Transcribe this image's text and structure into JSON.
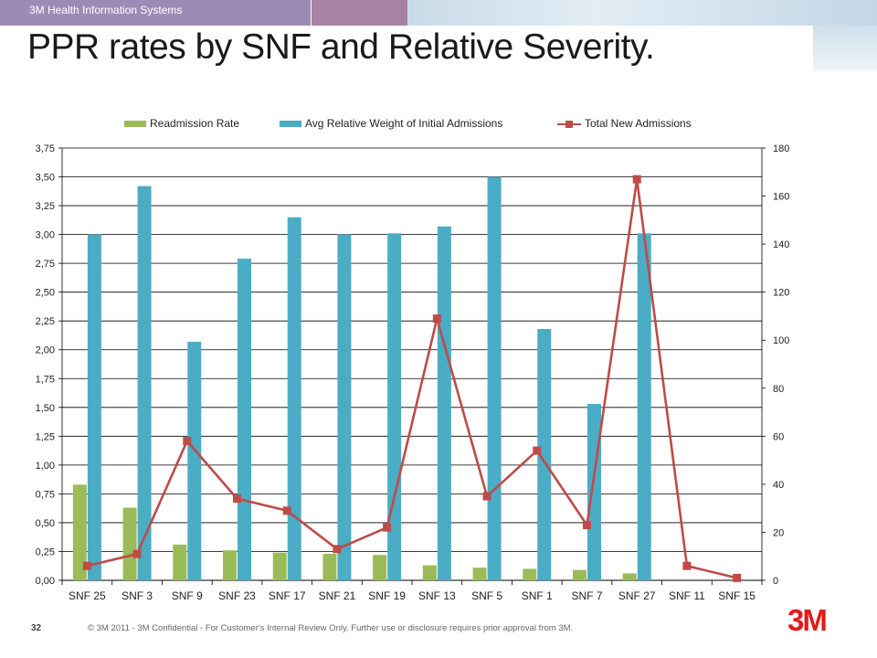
{
  "header": {
    "brand": "3M Health Information Systems",
    "title": "PPR rates by SNF and Relative Severity."
  },
  "colors": {
    "readmission": "#9bbb59",
    "weight": "#4bacc6",
    "admissions": "#be4b48",
    "grid": "#000000"
  },
  "chart_data": {
    "type": "bar",
    "title": "",
    "categories": [
      "SNF 25",
      "SNF 3",
      "SNF 9",
      "SNF 23",
      "SNF 17",
      "SNF 21",
      "SNF 19",
      "SNF 13",
      "SNF 5",
      "SNF 1",
      "SNF 7",
      "SNF 27",
      "SNF 11",
      "SNF 15"
    ],
    "series": [
      {
        "name": "Readmission Rate",
        "type": "bar",
        "axis": "left",
        "values": [
          0.83,
          0.63,
          0.31,
          0.26,
          0.24,
          0.23,
          0.22,
          0.13,
          0.11,
          0.1,
          0.09,
          0.06,
          0,
          0
        ]
      },
      {
        "name": "Avg Relative Weight  of Initial Admissions",
        "type": "bar",
        "axis": "left",
        "values": [
          3.0,
          3.42,
          2.07,
          2.79,
          3.15,
          3.0,
          3.01,
          3.07,
          3.5,
          2.18,
          1.53,
          3.01,
          0,
          0
        ]
      },
      {
        "name": "Total New Admissions",
        "type": "line",
        "axis": "right",
        "values": [
          6,
          11,
          58,
          34,
          29,
          13,
          22,
          109,
          35,
          54,
          23,
          167,
          6,
          1
        ]
      }
    ],
    "left_axis": {
      "min": 0,
      "max": 3.75,
      "step": 0.25,
      "ticks": [
        "0,00",
        "0,25",
        "0,50",
        "0,75",
        "1,00",
        "1,25",
        "1,50",
        "1,75",
        "2,00",
        "2,25",
        "2,50",
        "2,75",
        "3,00",
        "3,25",
        "3,50",
        "3,75"
      ]
    },
    "right_axis": {
      "min": 0,
      "max": 180,
      "step": 20,
      "ticks": [
        "0",
        "20",
        "40",
        "60",
        "80",
        "100",
        "120",
        "140",
        "160",
        "180"
      ]
    },
    "grid": true,
    "legend": "top"
  },
  "footer": {
    "page_number": "32",
    "copyright": "© 3M 2011  -  3M Confidential - For Customer's Internal Review Only.  Further use or disclosure requires prior approval from 3M.",
    "logo_text": "3M"
  }
}
